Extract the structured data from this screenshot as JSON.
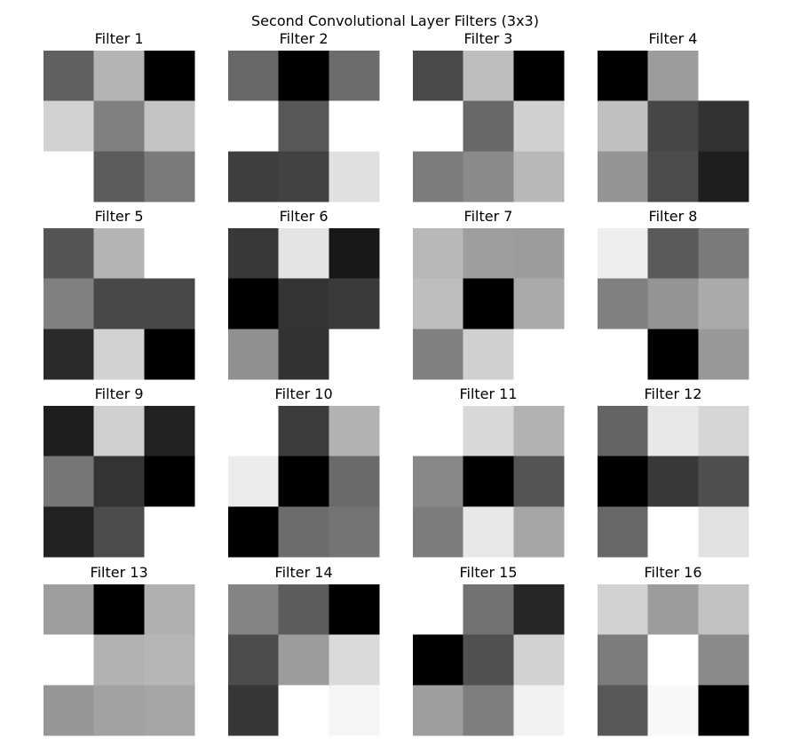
{
  "figure": {
    "title": "Second Convolutional Layer Filters (3x3)"
  },
  "chart_data": {
    "type": "heatmap",
    "title": "Second Convolutional Layer Filters (3x3)",
    "colormap": "gray",
    "grid": false,
    "axes_visible": false,
    "value_scale": "0 = black, 255 = white (per-filter normalized)",
    "filters": [
      {
        "name": "Filter 1",
        "cells": [
          [
            96,
            180,
            0
          ],
          [
            210,
            128,
            196
          ],
          [
            255,
            92,
            122
          ]
        ]
      },
      {
        "name": "Filter 2",
        "cells": [
          [
            104,
            0,
            108
          ],
          [
            255,
            88,
            255
          ],
          [
            62,
            66,
            224
          ]
        ]
      },
      {
        "name": "Filter 3",
        "cells": [
          [
            74,
            190,
            0
          ],
          [
            255,
            104,
            208
          ],
          [
            124,
            138,
            184
          ]
        ]
      },
      {
        "name": "Filter 4",
        "cells": [
          [
            0,
            156,
            255
          ],
          [
            192,
            70,
            50
          ],
          [
            148,
            76,
            30
          ]
        ]
      },
      {
        "name": "Filter 5",
        "cells": [
          [
            84,
            180,
            255
          ],
          [
            128,
            72,
            72
          ],
          [
            42,
            210,
            0
          ]
        ]
      },
      {
        "name": "Filter 6",
        "cells": [
          [
            56,
            228,
            24
          ],
          [
            0,
            52,
            58
          ],
          [
            144,
            50,
            255
          ]
        ]
      },
      {
        "name": "Filter 7",
        "cells": [
          [
            184,
            158,
            156
          ],
          [
            190,
            0,
            170
          ],
          [
            128,
            208,
            255
          ]
        ]
      },
      {
        "name": "Filter 8",
        "cells": [
          [
            238,
            90,
            122
          ],
          [
            128,
            148,
            170
          ],
          [
            255,
            0,
            152
          ]
        ]
      },
      {
        "name": "Filter 9",
        "cells": [
          [
            30,
            208,
            34
          ],
          [
            118,
            52,
            0
          ],
          [
            34,
            76,
            255
          ]
        ]
      },
      {
        "name": "Filter 10",
        "cells": [
          [
            255,
            60,
            178
          ],
          [
            236,
            0,
            106
          ],
          [
            0,
            108,
            116
          ]
        ]
      },
      {
        "name": "Filter 11",
        "cells": [
          [
            255,
            216,
            178
          ],
          [
            136,
            0,
            84
          ],
          [
            124,
            232,
            166
          ]
        ]
      },
      {
        "name": "Filter 12",
        "cells": [
          [
            100,
            232,
            214
          ],
          [
            0,
            56,
            78
          ],
          [
            104,
            255,
            226
          ]
        ]
      },
      {
        "name": "Filter 13",
        "cells": [
          [
            158,
            0,
            176
          ],
          [
            255,
            178,
            182
          ],
          [
            150,
            162,
            166
          ]
        ]
      },
      {
        "name": "Filter 14",
        "cells": [
          [
            132,
            92,
            0
          ],
          [
            76,
            156,
            218
          ],
          [
            54,
            255,
            245
          ]
        ]
      },
      {
        "name": "Filter 15",
        "cells": [
          [
            255,
            114,
            38
          ],
          [
            0,
            80,
            210
          ],
          [
            158,
            126,
            242
          ]
        ]
      },
      {
        "name": "Filter 16",
        "cells": [
          [
            210,
            156,
            194
          ],
          [
            124,
            255,
            138
          ],
          [
            88,
            248,
            0
          ]
        ]
      }
    ]
  }
}
